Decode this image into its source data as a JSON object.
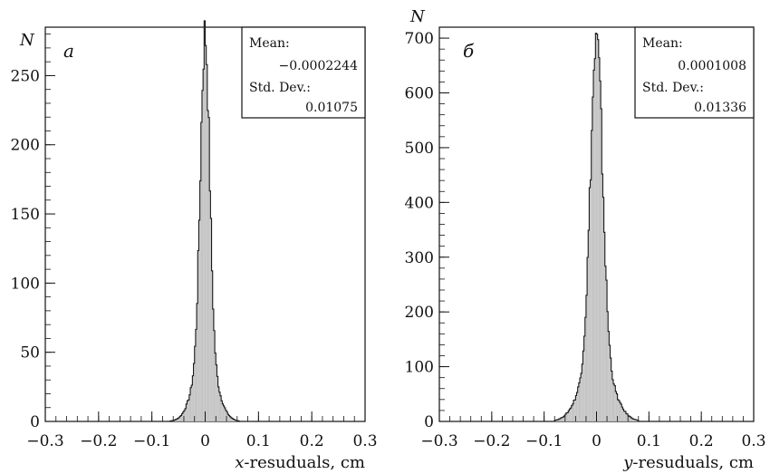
{
  "chart_data": [
    {
      "type": "histogram",
      "panel_label": "a",
      "ylabel": "N",
      "xlabel_var": "x",
      "xlabel_rest": "-resuduals, cm",
      "xlim": [
        -0.3,
        0.3
      ],
      "ylim": [
        0,
        285
      ],
      "x_ticks": [
        -0.3,
        -0.2,
        -0.1,
        0,
        0.1,
        0.2,
        0.3
      ],
      "x_tick_labels": [
        "−0.3",
        "−0.2",
        "−0.1",
        "0",
        "0.1",
        "0.2",
        "0.3"
      ],
      "y_ticks": [
        0,
        50,
        100,
        150,
        200,
        250
      ],
      "y_tick_labels": [
        "0",
        "50",
        "100",
        "150",
        "200",
        "250"
      ],
      "stats": {
        "mean_label": "Mean:",
        "mean_value": "−0.0002244",
        "std_label": "Std. Dev.:",
        "std_value": "0.01075"
      },
      "distribution": {
        "center": -0.0002244,
        "sigma": 0.0085,
        "peak": 280,
        "bin_width": 0.002
      },
      "fill_color": "#c4c4c4",
      "edge_color": "#1a1a1a"
    },
    {
      "type": "histogram",
      "panel_label": "б",
      "ylabel": "N",
      "xlabel_var": "y",
      "xlabel_rest": "-resuduals, cm",
      "xlim": [
        -0.3,
        0.3
      ],
      "ylim": [
        0,
        720
      ],
      "x_ticks": [
        -0.3,
        -0.2,
        -0.1,
        0,
        0.1,
        0.2,
        0.3
      ],
      "x_tick_labels": [
        "−0.3",
        "−0.2",
        "−0.1",
        "0",
        "0.1",
        "0.2",
        "0.3"
      ],
      "y_ticks": [
        0,
        100,
        200,
        300,
        400,
        500,
        600,
        700
      ],
      "y_tick_labels": [
        "0",
        "100",
        "200",
        "300",
        "400",
        "500",
        "600",
        "700"
      ],
      "stats": {
        "mean_label": "Mean:",
        "mean_value": "0.0001008",
        "std_label": "Std. Dev.:",
        "std_value": "0.01336"
      },
      "distribution": {
        "center": 0.0001008,
        "sigma": 0.0115,
        "peak": 690,
        "bin_width": 0.002
      },
      "fill_color": "#c4c4c4",
      "edge_color": "#1a1a1a"
    }
  ]
}
